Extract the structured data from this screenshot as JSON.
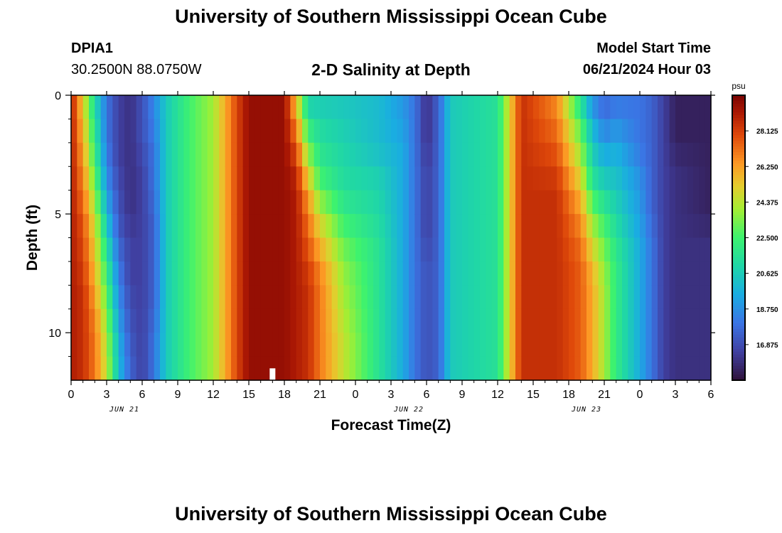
{
  "header": {
    "title": "University of Southern Mississippi Ocean Cube",
    "station_id": "DPIA1",
    "station_coords": "30.2500N  88.0750W",
    "plot_title": "2-D Salinity at Depth",
    "model_start_label": "Model Start Time",
    "model_start_value": "06/21/2024 Hour 03"
  },
  "footer": {
    "title": "University of Southern Mississippi Ocean Cube"
  },
  "chart_data": {
    "type": "heatmap",
    "title": "2-D Salinity at Depth",
    "xlabel": "Forecast Time(Z)",
    "ylabel": "Depth (ft)",
    "x_ticks": [
      "0",
      "3",
      "6",
      "9",
      "12",
      "15",
      "18",
      "21",
      "0",
      "3",
      "6",
      "9",
      "12",
      "15",
      "18",
      "21",
      "0",
      "3",
      "6"
    ],
    "date_labels": [
      {
        "text": "JUN 21",
        "tick_index": 1.5
      },
      {
        "text": "JUN 22",
        "tick_index": 9.5
      },
      {
        "text": "JUN 23",
        "tick_index": 14.5
      }
    ],
    "hours_range": [
      0,
      54
    ],
    "depth_range": [
      0,
      12
    ],
    "y_ticks": [
      "0",
      "5",
      "10"
    ],
    "y_tick_values": [
      0,
      5,
      10
    ],
    "colorbar": {
      "unit": "psu",
      "range": [
        15.0,
        30.0
      ],
      "tick_labels": [
        "28.125",
        "26.250",
        "24.375",
        "22.500",
        "20.625",
        "18.750",
        "16.875"
      ],
      "tick_values": [
        28.125,
        26.25,
        24.375,
        22.5,
        20.625,
        18.75,
        16.875
      ]
    },
    "depth_levels_ft": [
      0,
      1,
      2,
      3,
      4,
      5,
      6,
      7,
      8,
      9,
      10,
      11,
      12
    ],
    "salinity_columns": [
      {
        "hour": 0,
        "psu": [
          29,
          29,
          29,
          29,
          29,
          29,
          29,
          29,
          29,
          29,
          29,
          29,
          29
        ]
      },
      {
        "hour": 1,
        "psu": [
          25,
          25.5,
          26,
          26.5,
          27,
          27.5,
          28,
          28,
          28.5,
          28.5,
          28.5,
          28.5,
          28.5
        ]
      },
      {
        "hour": 2,
        "psu": [
          21,
          21.5,
          22,
          22.5,
          23.5,
          24.5,
          25,
          25.5,
          26,
          26.5,
          27,
          27,
          27
        ]
      },
      {
        "hour": 3,
        "psu": [
          18,
          18,
          18,
          18.5,
          19,
          20,
          21,
          22,
          22.5,
          23.5,
          24,
          24.5,
          24.5
        ]
      },
      {
        "hour": 4,
        "psu": [
          16.5,
          16.5,
          16.5,
          16.5,
          17,
          17,
          17.5,
          18,
          18.5,
          19,
          19.5,
          20,
          20
        ]
      },
      {
        "hour": 5,
        "psu": [
          16,
          16,
          16,
          16,
          16,
          16,
          16.5,
          16.5,
          16.5,
          17,
          17,
          17.5,
          17.5
        ]
      },
      {
        "hour": 6,
        "psu": [
          17,
          17,
          17,
          16.5,
          16.5,
          16.5,
          16.5,
          16.5,
          16.5,
          16.5,
          16.5,
          16.5,
          16.5
        ]
      },
      {
        "hour": 7,
        "psu": [
          18.5,
          18.5,
          18,
          18,
          18,
          17.5,
          17.5,
          17.5,
          17.5,
          17.5,
          18,
          18,
          18
        ]
      },
      {
        "hour": 8,
        "psu": [
          20.5,
          20.5,
          20.5,
          20.5,
          20.5,
          20.5,
          20.5,
          20.5,
          20.5,
          20.5,
          20.5,
          20.5,
          20.5
        ]
      },
      {
        "hour": 10,
        "psu": [
          22.5,
          22.5,
          22.5,
          22.5,
          22.5,
          22.5,
          22.5,
          22.5,
          22.5,
          22.5,
          22.5,
          22.5,
          22.5
        ]
      },
      {
        "hour": 12,
        "psu": [
          24,
          24,
          24,
          24,
          24,
          24,
          24,
          24,
          24,
          24,
          24,
          24,
          24
        ]
      },
      {
        "hour": 13,
        "psu": [
          26,
          26,
          26,
          26,
          26,
          26,
          26,
          26,
          26,
          26,
          26,
          26,
          26
        ]
      },
      {
        "hour": 14,
        "psu": [
          28,
          28,
          28,
          28,
          28,
          28,
          28,
          28,
          28,
          28,
          28,
          28,
          28
        ]
      },
      {
        "hour": 15,
        "psu": [
          29.5,
          29.5,
          29.5,
          29.5,
          29.5,
          29.5,
          29.5,
          29.5,
          29.5,
          29.5,
          29.5,
          29.5,
          29.5
        ]
      },
      {
        "hour": 18,
        "psu": [
          29.5,
          29.5,
          29.5,
          29.5,
          29.5,
          29.5,
          29.5,
          29.5,
          29.5,
          29.5,
          29.5,
          29.5,
          29.5
        ]
      },
      {
        "hour": 19,
        "psu": [
          25,
          26.5,
          27.5,
          28.5,
          29,
          29,
          29,
          29,
          29,
          29,
          29,
          29,
          29
        ]
      },
      {
        "hour": 20,
        "psu": [
          20.5,
          21.5,
          23,
          24.5,
          26,
          27,
          27.5,
          28,
          28.5,
          28.5,
          28.5,
          28.5,
          28.5
        ]
      },
      {
        "hour": 21,
        "psu": [
          20.5,
          21,
          21.5,
          22,
          23,
          24.5,
          25.5,
          26.5,
          27,
          27,
          27,
          27,
          27
        ]
      },
      {
        "hour": 23,
        "psu": [
          20.5,
          20.5,
          21,
          21,
          21.5,
          22,
          23,
          23.5,
          24,
          24,
          24.5,
          24.5,
          24.5
        ]
      },
      {
        "hour": 26,
        "psu": [
          20,
          20,
          20,
          20.5,
          21,
          21,
          21.5,
          21.5,
          21.5,
          21.5,
          21.5,
          21.5,
          21.5
        ]
      },
      {
        "hour": 28,
        "psu": [
          19,
          19,
          19.5,
          19.5,
          19.5,
          19.5,
          19.5,
          19.5,
          19.5,
          19.5,
          19.5,
          19.5,
          19.5
        ]
      },
      {
        "hour": 29,
        "psu": [
          18,
          18,
          18,
          18,
          18,
          18,
          18,
          18,
          18,
          18,
          18,
          18,
          18
        ]
      },
      {
        "hour": 30,
        "psu": [
          16,
          16,
          16,
          16.5,
          16.5,
          16.5,
          16.5,
          17,
          17,
          17,
          17,
          17,
          17
        ]
      },
      {
        "hour": 31,
        "psu": [
          17.5,
          17.5,
          17.5,
          17.5,
          17.5,
          17.5,
          17.5,
          17.5,
          17.5,
          17.5,
          17.5,
          17.5,
          17.5
        ]
      },
      {
        "hour": 32,
        "psu": [
          20.5,
          20.5,
          20.5,
          20.5,
          20.5,
          20.5,
          20.5,
          20.5,
          20.5,
          20.5,
          20.5,
          20.5,
          20.5
        ]
      },
      {
        "hour": 36,
        "psu": [
          21.5,
          21.5,
          21.5,
          21.5,
          21.5,
          21.5,
          21.5,
          21.5,
          21.5,
          21.5,
          21.5,
          21.5,
          21.5
        ]
      },
      {
        "hour": 37,
        "psu": [
          25,
          25,
          25,
          25,
          25,
          25,
          25,
          25,
          25,
          25,
          25,
          25,
          25
        ]
      },
      {
        "hour": 38,
        "psu": [
          28.5,
          28.5,
          28.5,
          28.5,
          28.5,
          28.5,
          28.5,
          28.5,
          28.5,
          28.5,
          28.5,
          28.5,
          28.5
        ]
      },
      {
        "hour": 41,
        "psu": [
          26.5,
          27,
          27.5,
          28,
          28.5,
          28.5,
          28.5,
          28.5,
          28.5,
          28.5,
          28.5,
          28.5,
          28.5
        ]
      },
      {
        "hour": 43,
        "psu": [
          21,
          22.5,
          23.5,
          24.5,
          25.5,
          26.5,
          27,
          27.5,
          27.5,
          27.5,
          27.5,
          27.5,
          27.5
        ]
      },
      {
        "hour": 44,
        "psu": [
          18.5,
          19.5,
          20.5,
          21,
          22,
          23.5,
          24.5,
          25.5,
          26,
          26,
          26,
          26,
          26
        ]
      },
      {
        "hour": 45,
        "psu": [
          17.5,
          18,
          19,
          20,
          21,
          22,
          23,
          23.5,
          24,
          24,
          24,
          24,
          24
        ]
      },
      {
        "hour": 46,
        "psu": [
          18,
          18.5,
          19.5,
          20,
          20.5,
          21,
          21.5,
          22,
          22,
          22,
          22,
          22,
          22
        ]
      },
      {
        "hour": 48,
        "psu": [
          18,
          18,
          18,
          18.5,
          19,
          19,
          19.5,
          19.5,
          19.5,
          19.5,
          19.5,
          19.5,
          19.5
        ]
      },
      {
        "hour": 49,
        "psu": [
          17.5,
          17.5,
          17.5,
          17.5,
          17.5,
          17.5,
          18,
          18,
          18,
          18,
          18,
          18,
          18
        ]
      },
      {
        "hour": 50,
        "psu": [
          16.5,
          16.5,
          16.5,
          16.5,
          16.5,
          16.5,
          16.5,
          16.5,
          16.5,
          16.5,
          16.5,
          16.5,
          16.5
        ]
      },
      {
        "hour": 51,
        "psu": [
          15.5,
          15.5,
          15.5,
          16,
          16,
          16,
          16,
          16,
          16,
          16,
          16,
          16,
          16
        ]
      },
      {
        "hour": 54,
        "psu": [
          15.5,
          15.5,
          15.5,
          15.5,
          15.5,
          15.5,
          16,
          16,
          16,
          16,
          16,
          16,
          16
        ]
      }
    ],
    "marker": {
      "hour": 17,
      "depth_range": [
        11.5,
        12
      ]
    }
  }
}
